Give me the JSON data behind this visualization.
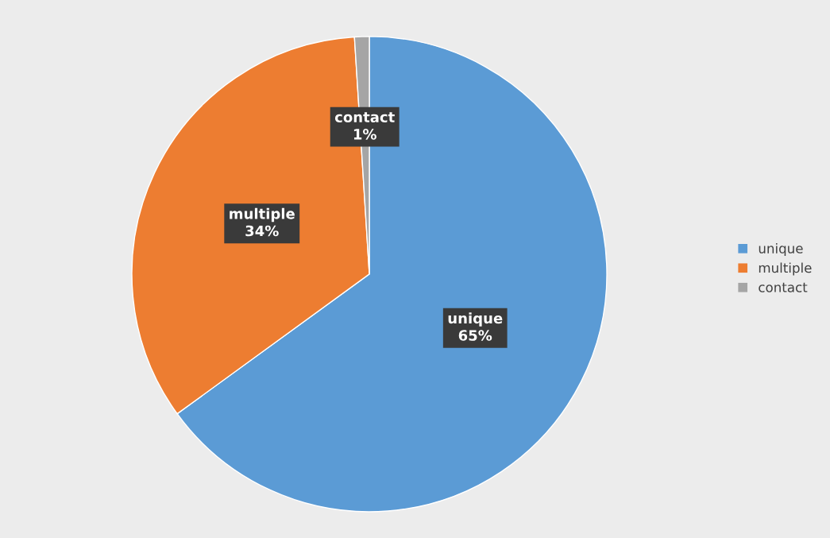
{
  "chart_data": {
    "type": "pie",
    "categories": [
      "unique",
      "multiple",
      "contact"
    ],
    "values": [
      65,
      34,
      1
    ],
    "colors": [
      "#5b9bd5",
      "#ed7d31",
      "#a5a5a5"
    ],
    "value_labels": [
      "65%",
      "34%",
      "1%"
    ],
    "legend": "right"
  }
}
